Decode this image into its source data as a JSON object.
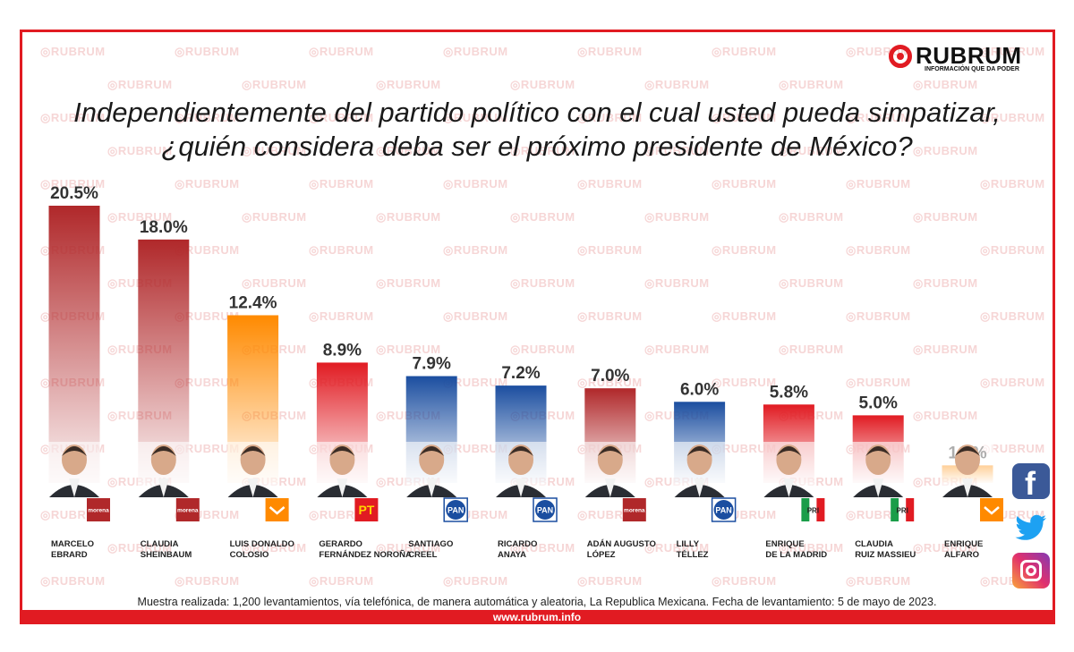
{
  "brand": {
    "name": "RUBRUM",
    "tagline": "INFORMACIÓN QUE DA PODER",
    "watermark": "RUBRUM",
    "url": "www.rubrum.info",
    "accent": "#e11b22"
  },
  "title_lines": [
    "Independientemente del partido político con el cual usted pueda simpatizar,",
    "¿quién considera deba ser el próximo presidente de México?"
  ],
  "note": "Muestra realizada: 1,200 levantamientos, vía telefónica, de manera automática y aleatoria,  La Republica Mexicana. Fecha de levantamiento: 5 de mayo de 2023.",
  "social_icons": [
    "facebook-icon",
    "twitter-icon",
    "instagram-icon"
  ],
  "party_colors": {
    "morena": "#b0282a",
    "mc": "#ff8a00",
    "pt": "#e11b22",
    "pan": "#1b4ea0",
    "pri": "#e11b22"
  },
  "chart_data": {
    "type": "bar",
    "title": "Independientemente del partido político con el cual usted pueda simpatizar, ¿quién considera deba ser el próximo presidente de México?",
    "categories": [
      [
        "MARCELO",
        "EBRARD"
      ],
      [
        "CLAUDIA",
        "SHEINBAUM"
      ],
      [
        "LUIS DONALDO",
        "COLOSIO"
      ],
      [
        "GERARDO",
        "FERNÁNDEZ NOROÑA"
      ],
      [
        "SANTIAGO",
        "CREEL"
      ],
      [
        "RICARDO",
        "ANAYA"
      ],
      [
        "ADÁN AUGUSTO",
        "LÓPEZ"
      ],
      [
        "LILLY",
        "TÉLLEZ"
      ],
      [
        "ENRIQUE",
        "DE LA MADRID"
      ],
      [
        "CLAUDIA",
        "RUIZ MASSIEU"
      ],
      [
        "ENRIQUE",
        "ALFARO"
      ]
    ],
    "values": [
      20.5,
      18.0,
      12.4,
      8.9,
      7.9,
      7.2,
      7.0,
      6.0,
      5.8,
      5.0,
      1.3
    ],
    "value_labels": [
      "20.5%",
      "18.0%",
      "12.4%",
      "8.9%",
      "7.9%",
      "7.2%",
      "7.0%",
      "6.0%",
      "5.8%",
      "5.0%",
      "1.3%"
    ],
    "parties": [
      "morena",
      "morena",
      "mc",
      "pt",
      "pan",
      "pan",
      "morena",
      "pan",
      "pri",
      "pri",
      "mc"
    ],
    "party_badge_labels": [
      "morena",
      "morena",
      "",
      "PT",
      "PAN",
      "PAN",
      "morena",
      "PAN",
      "PRI",
      "PRI",
      ""
    ],
    "xlabel": "",
    "ylabel": "",
    "ylim": [
      0,
      20.5
    ],
    "grid": false,
    "legend": "none"
  }
}
